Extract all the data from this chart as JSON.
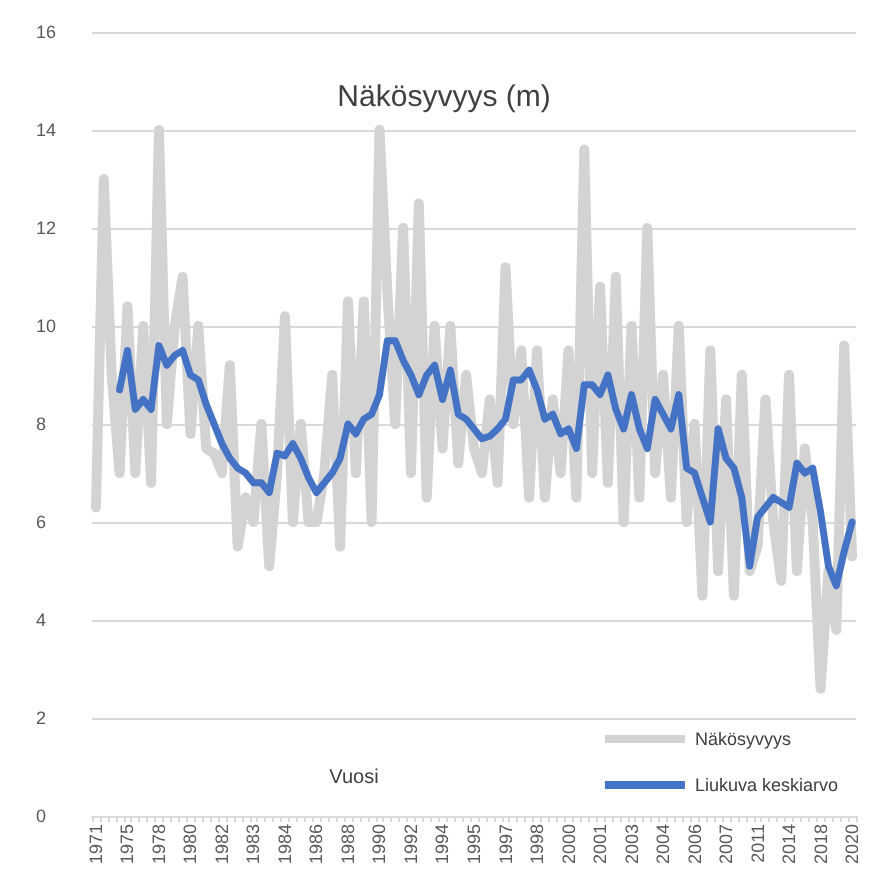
{
  "chart_data": {
    "type": "line",
    "title": "Näkösyvyys (m)",
    "xlabel": "Vuosi",
    "categories": [
      "1971",
      null,
      null,
      null,
      "1975",
      null,
      null,
      null,
      "1978",
      null,
      null,
      null,
      "1980",
      null,
      null,
      null,
      "1982",
      null,
      null,
      null,
      "1983",
      null,
      null,
      null,
      "1984",
      null,
      null,
      null,
      "1986",
      null,
      null,
      null,
      "1988",
      null,
      null,
      null,
      "1990",
      null,
      null,
      null,
      "1992",
      null,
      null,
      null,
      "1994",
      null,
      null,
      null,
      "1995",
      null,
      null,
      null,
      "1997",
      null,
      null,
      null,
      "1998",
      null,
      null,
      null,
      "2000",
      null,
      null,
      null,
      "2001",
      null,
      null,
      null,
      "2003",
      null,
      null,
      null,
      "2004",
      null,
      null,
      null,
      "2006",
      null,
      null,
      null,
      "2007",
      null,
      null,
      null,
      "2011",
      null,
      null,
      null,
      "2014",
      null,
      null,
      null,
      "2018",
      null,
      null,
      null,
      "2020"
    ],
    "series": [
      {
        "name": "Näkösyvyys",
        "color": "#d3d3d3",
        "values": [
          6.3,
          13.0,
          9.0,
          7.0,
          10.4,
          7.0,
          10.0,
          6.8,
          14.0,
          8.0,
          10.0,
          11.0,
          7.8,
          10.0,
          7.5,
          7.4,
          7.0,
          9.2,
          5.5,
          6.5,
          6.0,
          8.0,
          5.1,
          7.0,
          10.2,
          6.0,
          8.0,
          6.0,
          6.0,
          7.0,
          9.0,
          5.5,
          10.5,
          7.0,
          10.5,
          6.0,
          14.0,
          10.7,
          8.0,
          12.0,
          7.0,
          12.5,
          6.5,
          10.0,
          7.5,
          10.0,
          7.2,
          9.0,
          7.5,
          7.0,
          8.5,
          6.8,
          11.2,
          8.0,
          9.5,
          6.5,
          9.5,
          6.5,
          8.5,
          7.0,
          9.5,
          6.5,
          13.6,
          7.0,
          10.8,
          6.8,
          11.0,
          6.0,
          10.0,
          6.5,
          12.0,
          7.0,
          9.0,
          6.5,
          10.0,
          6.0,
          8.0,
          4.5,
          9.5,
          5.0,
          8.5,
          4.5,
          9.0,
          5.0,
          5.5,
          8.5,
          6.0,
          4.8,
          9.0,
          5.0,
          7.5,
          6.0,
          2.6,
          5.0,
          3.8,
          9.6,
          5.3
        ]
      },
      {
        "name": "Liukuva keskiarvo",
        "color": "#4472c4",
        "values": [
          null,
          null,
          null,
          8.7,
          9.5,
          8.3,
          8.5,
          8.3,
          9.6,
          9.2,
          9.4,
          9.5,
          9.0,
          8.9,
          8.4,
          8.0,
          7.6,
          7.3,
          7.1,
          7.0,
          6.8,
          6.8,
          6.6,
          7.4,
          7.35,
          7.6,
          7.3,
          6.9,
          6.6,
          6.8,
          7.0,
          7.3,
          8.0,
          7.8,
          8.1,
          8.2,
          8.6,
          9.7,
          9.7,
          9.3,
          9.0,
          8.6,
          9.0,
          9.2,
          8.5,
          9.1,
          8.2,
          8.1,
          7.9,
          7.7,
          7.75,
          7.9,
          8.1,
          8.9,
          8.9,
          9.1,
          8.7,
          8.1,
          8.2,
          7.8,
          7.9,
          7.5,
          8.8,
          8.8,
          8.6,
          9.0,
          8.3,
          7.9,
          8.6,
          7.9,
          7.5,
          8.5,
          8.2,
          7.9,
          8.6,
          7.1,
          7.0,
          6.5,
          6.0,
          7.9,
          7.3,
          7.1,
          6.5,
          5.1,
          6.1,
          6.3,
          6.5,
          6.4,
          6.3,
          7.2,
          7.0,
          7.1,
          6.2,
          5.1,
          4.7,
          5.4,
          6.0
        ]
      }
    ],
    "ylim": [
      0,
      16
    ],
    "yticks": [
      0,
      2,
      4,
      6,
      8,
      10,
      12,
      14,
      16
    ],
    "grid": "y",
    "legend": "bottom right",
    "marker": "none",
    "line_style": "solid"
  }
}
